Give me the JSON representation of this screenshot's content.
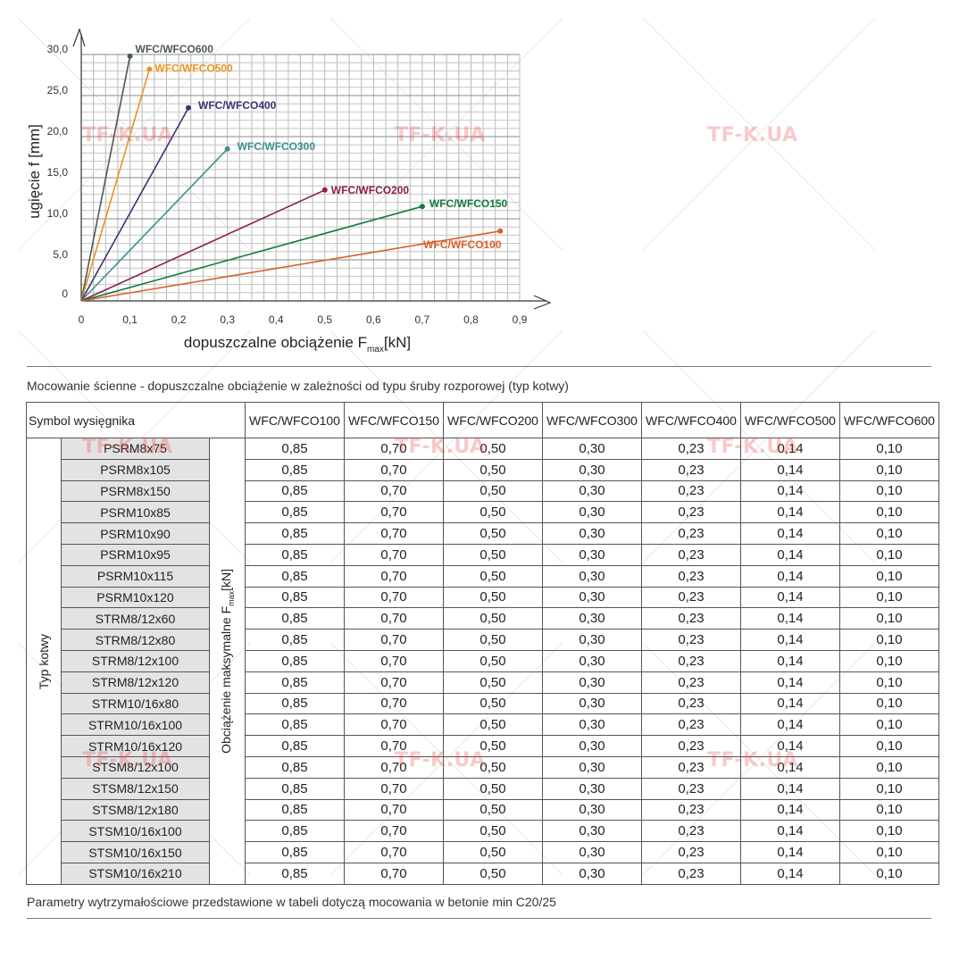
{
  "chart_data": {
    "type": "line",
    "xlabel": "dopuszczalne obciążenie F",
    "xlabel_sub": "max",
    "xlabel_unit": "[kN]",
    "ylabel": "ugięcie f [mm]",
    "x_ticks": [
      "0",
      "0,1",
      "0,2",
      "0,3",
      "0,4",
      "0,5",
      "0,6",
      "0,7",
      "0,8",
      "0,9"
    ],
    "y_ticks": [
      "0",
      "5,0",
      "10,0",
      "15,0",
      "20,0",
      "25,0",
      "30,0"
    ],
    "xlim": [
      0,
      0.9
    ],
    "ylim": [
      0,
      30
    ],
    "grid": true,
    "series": [
      {
        "name": "WFC/WFCO600",
        "color": "#4a5a55",
        "x": [
          0,
          0.1
        ],
        "y": [
          0,
          29.8
        ]
      },
      {
        "name": "WFC/WFCO500",
        "color": "#e8941f",
        "x": [
          0,
          0.14
        ],
        "y": [
          0,
          28.2
        ]
      },
      {
        "name": "WFC/WFCO400",
        "color": "#3b3376",
        "x": [
          0,
          0.22
        ],
        "y": [
          0,
          23.5
        ]
      },
      {
        "name": "WFC/WFCO300",
        "color": "#3e8f94",
        "x": [
          0,
          0.3
        ],
        "y": [
          0,
          18.5
        ]
      },
      {
        "name": "WFC/WFCO200",
        "color": "#8c1d4f",
        "x": [
          0,
          0.5
        ],
        "y": [
          0,
          13.5
        ]
      },
      {
        "name": "WFC/WFCO150",
        "color": "#137a3a",
        "x": [
          0,
          0.7
        ],
        "y": [
          0,
          11.5
        ]
      },
      {
        "name": "WFC/WFCO100",
        "color": "#d8612a",
        "x": [
          0,
          0.86
        ],
        "y": [
          0,
          8.5
        ]
      }
    ]
  },
  "watermark": "TF-K.UA",
  "table": {
    "caption": "Mocowanie ścienne - dopuszczalne obciążenie w zależności od typu śruby rozporowej (typ kotwy)",
    "symbol_header": "Symbol wysięgnika",
    "columns": [
      "WFC/WFCO100",
      "WFC/WFCO150",
      "WFC/WFCO200",
      "WFC/WFCO300",
      "WFC/WFCO400",
      "WFC/WFCO500",
      "WFC/WFCO600"
    ],
    "row_group_label": "Typ kotwy",
    "value_label": "Obciążenie maksymalne F",
    "value_label_sub": "max",
    "value_label_unit": "[kN]",
    "rows": [
      {
        "anchor": "PSRM8x75",
        "values": [
          "0,85",
          "0,70",
          "0,50",
          "0,30",
          "0,23",
          "0,14",
          "0,10"
        ]
      },
      {
        "anchor": "PSRM8x105",
        "values": [
          "0,85",
          "0,70",
          "0,50",
          "0,30",
          "0,23",
          "0,14",
          "0,10"
        ]
      },
      {
        "anchor": "PSRM8x150",
        "values": [
          "0,85",
          "0,70",
          "0,50",
          "0,30",
          "0,23",
          "0,14",
          "0,10"
        ]
      },
      {
        "anchor": "PSRM10x85",
        "values": [
          "0,85",
          "0,70",
          "0,50",
          "0,30",
          "0,23",
          "0,14",
          "0,10"
        ]
      },
      {
        "anchor": "PSRM10x90",
        "values": [
          "0,85",
          "0,70",
          "0,50",
          "0,30",
          "0,23",
          "0,14",
          "0,10"
        ]
      },
      {
        "anchor": "PSRM10x95",
        "values": [
          "0,85",
          "0,70",
          "0,50",
          "0,30",
          "0,23",
          "0,14",
          "0,10"
        ]
      },
      {
        "anchor": "PSRM10x115",
        "values": [
          "0,85",
          "0,70",
          "0,50",
          "0,30",
          "0,23",
          "0,14",
          "0,10"
        ]
      },
      {
        "anchor": "PSRM10x120",
        "values": [
          "0,85",
          "0,70",
          "0,50",
          "0,30",
          "0,23",
          "0,14",
          "0,10"
        ]
      },
      {
        "anchor": "STRM8/12x60",
        "values": [
          "0,85",
          "0,70",
          "0,50",
          "0,30",
          "0,23",
          "0,14",
          "0,10"
        ]
      },
      {
        "anchor": "STRM8/12x80",
        "values": [
          "0,85",
          "0,70",
          "0,50",
          "0,30",
          "0,23",
          "0,14",
          "0,10"
        ]
      },
      {
        "anchor": "STRM8/12x100",
        "values": [
          "0,85",
          "0,70",
          "0,50",
          "0,30",
          "0,23",
          "0,14",
          "0,10"
        ]
      },
      {
        "anchor": "STRM8/12x120",
        "values": [
          "0,85",
          "0,70",
          "0,50",
          "0,30",
          "0,23",
          "0,14",
          "0,10"
        ]
      },
      {
        "anchor": "STRM10/16x80",
        "values": [
          "0,85",
          "0,70",
          "0,50",
          "0,30",
          "0,23",
          "0,14",
          "0,10"
        ]
      },
      {
        "anchor": "STRM10/16x100",
        "values": [
          "0,85",
          "0,70",
          "0,50",
          "0,30",
          "0,23",
          "0,14",
          "0,10"
        ]
      },
      {
        "anchor": "STRM10/16x120",
        "values": [
          "0,85",
          "0,70",
          "0,50",
          "0,30",
          "0,23",
          "0,14",
          "0,10"
        ]
      },
      {
        "anchor": "STSM8/12x100",
        "values": [
          "0,85",
          "0,70",
          "0,50",
          "0,30",
          "0,23",
          "0,14",
          "0,10"
        ]
      },
      {
        "anchor": "STSM8/12x150",
        "values": [
          "0,85",
          "0,70",
          "0,50",
          "0,30",
          "0,23",
          "0,14",
          "0,10"
        ]
      },
      {
        "anchor": "STSM8/12x180",
        "values": [
          "0,85",
          "0,70",
          "0,50",
          "0,30",
          "0,23",
          "0,14",
          "0,10"
        ]
      },
      {
        "anchor": "STSM10/16x100",
        "values": [
          "0,85",
          "0,70",
          "0,50",
          "0,30",
          "0,23",
          "0,14",
          "0,10"
        ]
      },
      {
        "anchor": "STSM10/16x150",
        "values": [
          "0,85",
          "0,70",
          "0,50",
          "0,30",
          "0,23",
          "0,14",
          "0,10"
        ]
      },
      {
        "anchor": "STSM10/16x210",
        "values": [
          "0,85",
          "0,70",
          "0,50",
          "0,30",
          "0,23",
          "0,14",
          "0,10"
        ]
      }
    ],
    "footnote": "Parametry wytrzymałościowe przedstawione w tabeli dotyczą mocowania w betonie min C20/25"
  }
}
